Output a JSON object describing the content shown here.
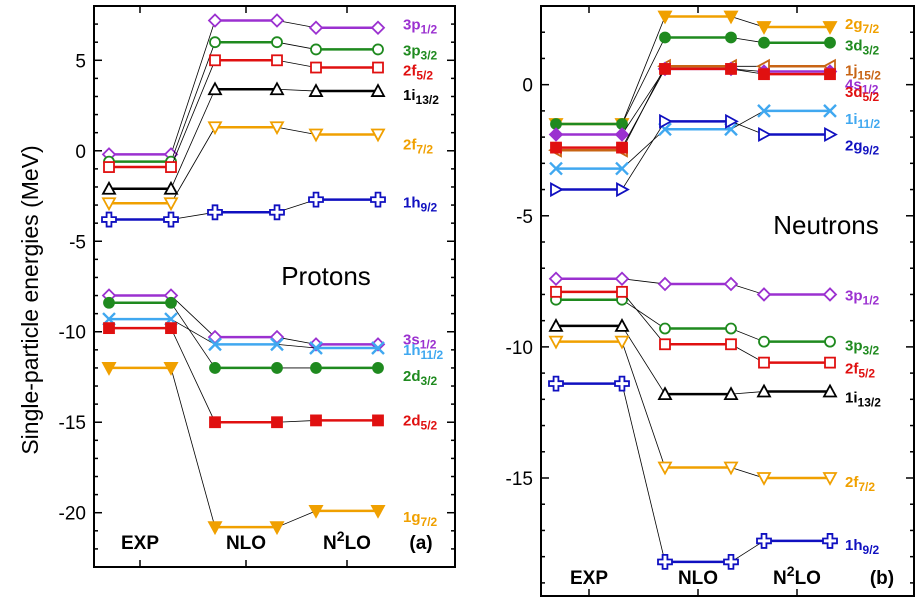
{
  "figure": {
    "ylabel": "Single-particle energies (MeV)",
    "categories": [
      "EXP",
      "NLO",
      "N²LO"
    ]
  },
  "chart_data": [
    {
      "type": "line",
      "panel": "(a)",
      "title": "Protons",
      "categories": [
        "EXP",
        "NLO",
        "N²LO"
      ],
      "ylabel": "Single-particle energies (MeV)",
      "ylim": [
        -23,
        8
      ],
      "yticks": [
        5,
        0,
        -5,
        -10,
        -15,
        -20
      ],
      "series": [
        {
          "name": "3p1/2",
          "nl": "3p",
          "j": "1/2",
          "color": "#9b30d0",
          "marker": "diamond-open",
          "values": [
            -0.2,
            7.2,
            6.8
          ]
        },
        {
          "name": "3p3/2",
          "nl": "3p",
          "j": "3/2",
          "color": "#1f8a1f",
          "marker": "circle-open",
          "values": [
            -0.6,
            6.0,
            5.6
          ]
        },
        {
          "name": "2f5/2",
          "nl": "2f",
          "j": "5/2",
          "color": "#e01010",
          "marker": "square-open",
          "values": [
            -0.9,
            5.0,
            4.6
          ]
        },
        {
          "name": "1i13/2",
          "nl": "1i",
          "j": "13/2",
          "color": "#000000",
          "marker": "triangle-up-open",
          "values": [
            -2.1,
            3.4,
            3.3
          ]
        },
        {
          "name": "2f7/2",
          "nl": "2f",
          "j": "7/2",
          "color": "#f0a000",
          "marker": "triangle-down-open",
          "values": [
            -2.9,
            1.3,
            0.9
          ]
        },
        {
          "name": "1h9/2",
          "nl": "1h",
          "j": "9/2",
          "color": "#1010c0",
          "marker": "cross-open",
          "values": [
            -3.8,
            -3.4,
            -2.7
          ]
        },
        {
          "name": "3s1/2",
          "nl": "3s",
          "j": "1/2",
          "color": "#9b30d0",
          "marker": "diamond-open",
          "values": [
            -8.0,
            -10.3,
            -10.7
          ]
        },
        {
          "name": "1h11/2",
          "nl": "1h",
          "j": "11/2",
          "color": "#40a8f0",
          "marker": "x",
          "values": [
            -9.3,
            -10.7,
            -10.9
          ]
        },
        {
          "name": "2d3/2",
          "nl": "2d",
          "j": "3/2",
          "color": "#1f8a1f",
          "marker": "circle-filled",
          "values": [
            -8.4,
            -12.0,
            -12.0
          ]
        },
        {
          "name": "2d5/2",
          "nl": "2d",
          "j": "5/2",
          "color": "#e01010",
          "marker": "square-filled",
          "values": [
            -9.8,
            -15.0,
            -14.9
          ]
        },
        {
          "name": "1g7/2",
          "nl": "1g",
          "j": "7/2",
          "color": "#f0a000",
          "marker": "triangle-down-filled",
          "values": [
            -12.0,
            -20.8,
            -19.9
          ]
        }
      ]
    },
    {
      "type": "line",
      "panel": "(b)",
      "title": "Neutrons",
      "categories": [
        "EXP",
        "NLO",
        "N²LO"
      ],
      "ylim": [
        -19.5,
        3
      ],
      "yticks": [
        0,
        -5,
        -10,
        -15
      ],
      "series": [
        {
          "name": "2g7/2",
          "nl": "2g",
          "j": "7/2",
          "color": "#f0a000",
          "marker": "triangle-down-filled",
          "values": [
            -1.5,
            2.6,
            2.2
          ]
        },
        {
          "name": "3d3/2",
          "nl": "3d",
          "j": "3/2",
          "color": "#1f8a1f",
          "marker": "circle-filled",
          "values": [
            -1.5,
            1.8,
            1.6
          ]
        },
        {
          "name": "1j15/2",
          "nl": "1j",
          "j": "15/2",
          "color": "#c86414",
          "marker": "triangle-left-open",
          "values": [
            -2.5,
            0.7,
            0.7
          ]
        },
        {
          "name": "4s1/2",
          "nl": "4s",
          "j": "1/2",
          "color": "#9b30d0",
          "marker": "diamond-filled",
          "values": [
            -1.9,
            0.6,
            0.5
          ]
        },
        {
          "name": "3d5/2",
          "nl": "3d",
          "j": "5/2",
          "color": "#e01010",
          "marker": "square-filled",
          "values": [
            -2.4,
            0.6,
            0.4
          ]
        },
        {
          "name": "1i11/2",
          "nl": "1i",
          "j": "11/2",
          "color": "#40a8f0",
          "marker": "x",
          "values": [
            -3.2,
            -1.7,
            -1.0
          ]
        },
        {
          "name": "2g9/2",
          "nl": "2g",
          "j": "9/2",
          "color": "#1010c0",
          "marker": "triangle-right-open",
          "values": [
            -4.0,
            -1.4,
            -1.9
          ]
        },
        {
          "name": "3p1/2",
          "nl": "3p",
          "j": "1/2",
          "color": "#9b30d0",
          "marker": "diamond-open",
          "values": [
            -7.4,
            -7.6,
            -8.0
          ]
        },
        {
          "name": "3p3/2",
          "nl": "3p",
          "j": "3/2",
          "color": "#1f8a1f",
          "marker": "circle-open",
          "values": [
            -8.2,
            -9.3,
            -9.8
          ]
        },
        {
          "name": "2f5/2",
          "nl": "2f",
          "j": "5/2",
          "color": "#e01010",
          "marker": "square-open",
          "values": [
            -7.9,
            -9.9,
            -10.6
          ]
        },
        {
          "name": "1i13/2",
          "nl": "1i",
          "j": "13/2",
          "color": "#000000",
          "marker": "triangle-up-open",
          "values": [
            -9.2,
            -11.8,
            -11.7
          ]
        },
        {
          "name": "2f7/2",
          "nl": "2f",
          "j": "7/2",
          "color": "#f0a000",
          "marker": "triangle-down-open",
          "values": [
            -9.8,
            -14.6,
            -15.0
          ]
        },
        {
          "name": "1h9/2",
          "nl": "1h",
          "j": "9/2",
          "color": "#1010c0",
          "marker": "cross-open",
          "values": [
            -11.4,
            -18.2,
            -17.4
          ]
        }
      ]
    }
  ]
}
